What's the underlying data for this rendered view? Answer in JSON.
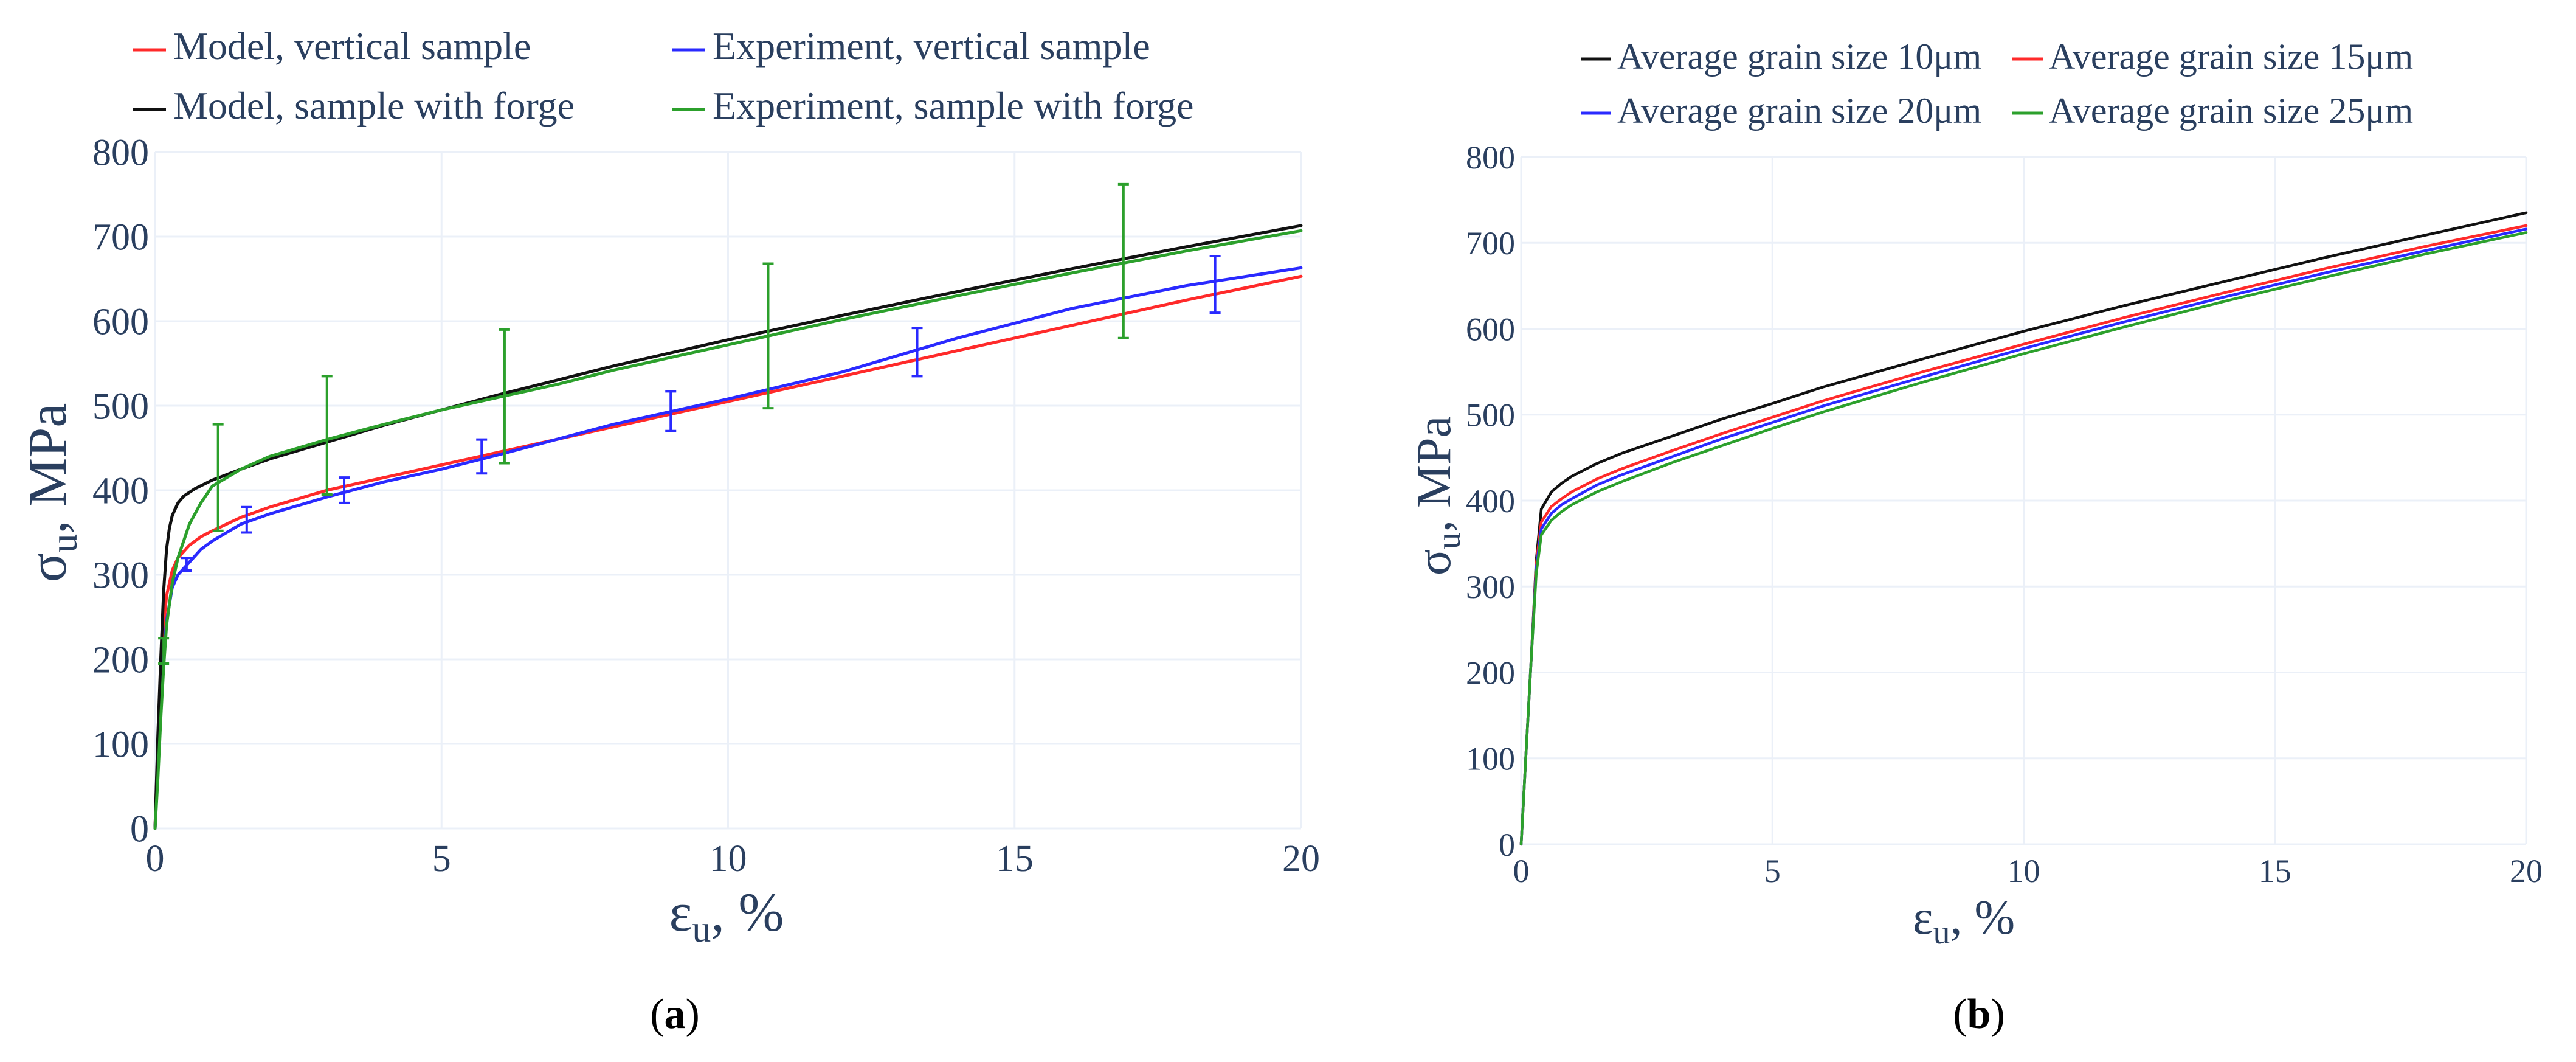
{
  "colors": {
    "red": "#ff2a2a",
    "blue": "#2a2aff",
    "black": "#111111",
    "green": "#2ca02c",
    "grid": "#ebf0f8",
    "axis_text": "#2a3f5f"
  },
  "chart_data": [
    {
      "id": "a",
      "type": "line",
      "caption_open": "(",
      "caption": "a",
      "caption_close": ")",
      "xlabel_main": "ε",
      "xlabel_sub": "u",
      "xlabel_rest": ", %",
      "ylabel_main": "σ",
      "ylabel_sub": "u",
      "ylabel_rest": ", MPa",
      "xlim": [
        0,
        20
      ],
      "ylim": [
        0,
        800
      ],
      "xticks": [
        0,
        5,
        10,
        15,
        20
      ],
      "yticks": [
        0,
        100,
        200,
        300,
        400,
        500,
        600,
        700,
        800
      ],
      "grid": true,
      "legend_position": "top",
      "series": [
        {
          "name": "Model, vertical sample",
          "color": "#ff2a2a",
          "x": [
            0,
            0.05,
            0.1,
            0.15,
            0.2,
            0.3,
            0.4,
            0.6,
            0.8,
            1,
            1.5,
            2,
            3,
            4,
            5,
            6,
            7,
            8,
            9,
            10,
            12,
            14,
            16,
            18,
            20
          ],
          "y": [
            0,
            100,
            180,
            240,
            275,
            305,
            320,
            335,
            345,
            352,
            368,
            380,
            400,
            415,
            430,
            445,
            460,
            475,
            490,
            505,
            535,
            565,
            595,
            625,
            653
          ]
        },
        {
          "name": "Experiment, vertical sample",
          "color": "#2a2aff",
          "x": [
            0,
            0.05,
            0.1,
            0.15,
            0.2,
            0.3,
            0.4,
            0.6,
            0.8,
            1,
            1.5,
            2,
            3,
            4,
            5,
            6,
            7,
            8,
            9,
            10,
            12,
            14,
            16,
            18,
            20
          ],
          "y": [
            0,
            70,
            140,
            200,
            245,
            285,
            300,
            315,
            330,
            340,
            360,
            372,
            392,
            410,
            425,
            442,
            460,
            478,
            493,
            508,
            540,
            580,
            615,
            642,
            663
          ],
          "error_bars": [
            {
              "x": 0.55,
              "y": 313,
              "lo": 305,
              "hi": 320
            },
            {
              "x": 1.6,
              "y": 365,
              "lo": 350,
              "hi": 380
            },
            {
              "x": 3.3,
              "y": 400,
              "lo": 385,
              "hi": 415
            },
            {
              "x": 5.7,
              "y": 440,
              "lo": 420,
              "hi": 460
            },
            {
              "x": 9.0,
              "y": 495,
              "lo": 470,
              "hi": 517
            },
            {
              "x": 13.3,
              "y": 565,
              "lo": 535,
              "hi": 592
            },
            {
              "x": 18.5,
              "y": 643,
              "lo": 610,
              "hi": 677
            }
          ]
        },
        {
          "name": "Model, sample with forge",
          "color": "#111111",
          "x": [
            0,
            0.05,
            0.1,
            0.15,
            0.2,
            0.25,
            0.3,
            0.4,
            0.5,
            0.7,
            1,
            1.5,
            2,
            3,
            4,
            5,
            6,
            7,
            8,
            10,
            12,
            14,
            16,
            18,
            20
          ],
          "y": [
            0,
            110,
            200,
            280,
            330,
            355,
            370,
            385,
            393,
            402,
            412,
            425,
            437,
            457,
            477,
            495,
            513,
            530,
            547,
            578,
            607,
            635,
            662,
            688,
            713
          ]
        },
        {
          "name": "Experiment, sample with forge",
          "color": "#2ca02c",
          "x": [
            0,
            0.05,
            0.1,
            0.15,
            0.2,
            0.3,
            0.4,
            0.6,
            0.8,
            1,
            1.5,
            2,
            3,
            4,
            5,
            6,
            7,
            8,
            10,
            12,
            14,
            16,
            18,
            20
          ],
          "y": [
            0,
            60,
            130,
            190,
            240,
            290,
            320,
            360,
            385,
            405,
            425,
            440,
            460,
            478,
            495,
            510,
            525,
            542,
            572,
            602,
            630,
            657,
            683,
            707
          ],
          "error_bars": [
            {
              "x": 0.15,
              "y": 210,
              "lo": 195,
              "hi": 225
            },
            {
              "x": 1.1,
              "y": 415,
              "lo": 352,
              "hi": 478
            },
            {
              "x": 3.0,
              "y": 465,
              "lo": 395,
              "hi": 535
            },
            {
              "x": 6.1,
              "y": 512,
              "lo": 432,
              "hi": 590
            },
            {
              "x": 10.7,
              "y": 583,
              "lo": 497,
              "hi": 668
            },
            {
              "x": 16.9,
              "y": 670,
              "lo": 580,
              "hi": 762
            }
          ]
        }
      ]
    },
    {
      "id": "b",
      "type": "line",
      "caption_open": "(",
      "caption": "b",
      "caption_close": ")",
      "xlabel_main": "ε",
      "xlabel_sub": "u",
      "xlabel_rest": ", %",
      "ylabel_main": "σ",
      "ylabel_sub": "u",
      "ylabel_rest": ", MPa",
      "xlim": [
        0,
        20
      ],
      "ylim": [
        0,
        800
      ],
      "xticks": [
        0,
        5,
        10,
        15,
        20
      ],
      "yticks": [
        0,
        100,
        200,
        300,
        400,
        500,
        600,
        700,
        800
      ],
      "grid": true,
      "legend_position": "top",
      "series": [
        {
          "name": "Average grain size 10μm",
          "color": "#111111",
          "x": [
            0,
            0.1,
            0.2,
            0.3,
            0.4,
            0.6,
            0.8,
            1,
            1.5,
            2,
            3,
            4,
            5,
            6,
            8,
            10,
            12,
            14,
            16,
            18,
            20
          ],
          "y": [
            0,
            110,
            215,
            330,
            390,
            410,
            420,
            428,
            443,
            455,
            475,
            495,
            513,
            532,
            565,
            597,
            627,
            655,
            683,
            709,
            735
          ]
        },
        {
          "name": "Average grain size 15μm",
          "color": "#ff2a2a",
          "x": [
            0,
            0.1,
            0.2,
            0.3,
            0.4,
            0.6,
            0.8,
            1,
            1.5,
            2,
            3,
            4,
            5,
            6,
            8,
            10,
            12,
            14,
            16,
            18,
            20
          ],
          "y": [
            0,
            110,
            215,
            325,
            375,
            393,
            402,
            410,
            425,
            437,
            458,
            478,
            497,
            516,
            550,
            582,
            613,
            642,
            670,
            696,
            720
          ]
        },
        {
          "name": "Average grain size 20μm",
          "color": "#2a2aff",
          "x": [
            0,
            0.1,
            0.2,
            0.3,
            0.4,
            0.6,
            0.8,
            1,
            1.5,
            2,
            3,
            4,
            5,
            6,
            8,
            10,
            12,
            14,
            16,
            18,
            20
          ],
          "y": [
            0,
            110,
            215,
            320,
            367,
            385,
            395,
            402,
            418,
            430,
            451,
            472,
            491,
            510,
            544,
            577,
            608,
            637,
            665,
            691,
            716
          ]
        },
        {
          "name": "Average grain size 25μm",
          "color": "#2ca02c",
          "x": [
            0,
            0.1,
            0.2,
            0.3,
            0.4,
            0.6,
            0.8,
            1,
            1.5,
            2,
            3,
            4,
            5,
            6,
            8,
            10,
            12,
            14,
            16,
            18,
            20
          ],
          "y": [
            0,
            110,
            215,
            315,
            360,
            377,
            387,
            395,
            410,
            422,
            444,
            464,
            484,
            503,
            538,
            571,
            602,
            632,
            660,
            687,
            712
          ]
        }
      ]
    }
  ]
}
